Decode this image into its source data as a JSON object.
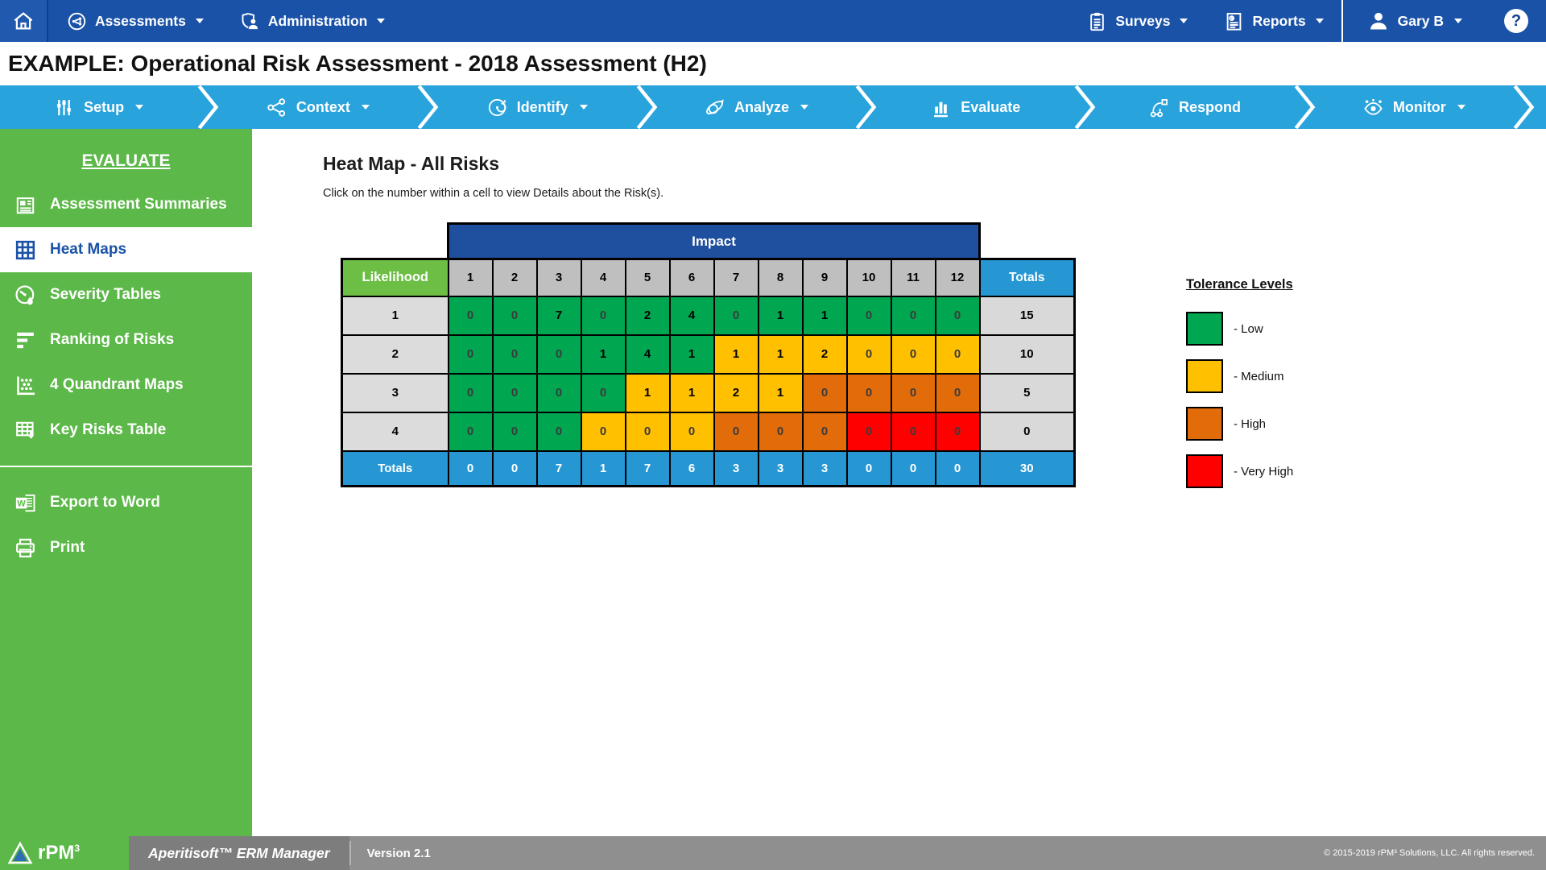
{
  "topnav": {
    "home": {
      "icon": "home-icon"
    },
    "menus_left": [
      {
        "label": "Assessments",
        "icon": "assessments-icon",
        "caret": true
      },
      {
        "label": "Administration",
        "icon": "administration-icon",
        "caret": true
      }
    ],
    "menus_right": [
      {
        "label": "Surveys",
        "icon": "surveys-icon",
        "caret": true
      },
      {
        "label": "Reports",
        "icon": "reports-icon",
        "caret": true
      }
    ],
    "user": {
      "label": "Gary B",
      "icon": "user-icon",
      "caret": true
    },
    "help_label": "?"
  },
  "title_bar": {
    "title": "EXAMPLE: Operational Risk Assessment - 2018 Assessment (H2)"
  },
  "workflow": {
    "items": [
      {
        "label": "Setup",
        "icon": "setup-icon",
        "caret": true,
        "active": false
      },
      {
        "label": "Context",
        "icon": "context-icon",
        "caret": true,
        "active": false
      },
      {
        "label": "Identify",
        "icon": "identify-icon",
        "caret": true,
        "active": false
      },
      {
        "label": "Analyze",
        "icon": "analyze-icon",
        "caret": true,
        "active": false
      },
      {
        "label": "Evaluate",
        "icon": "evaluate-icon",
        "caret": false,
        "active": true
      },
      {
        "label": "Respond",
        "icon": "respond-icon",
        "caret": false,
        "active": false
      },
      {
        "label": "Monitor",
        "icon": "monitor-icon",
        "caret": true,
        "active": false
      }
    ]
  },
  "sidebar": {
    "section_title": "EVALUATE",
    "items": [
      {
        "label": "Assessment Summaries",
        "icon": "assessment-summaries-icon",
        "active": false
      },
      {
        "label": "Heat Maps",
        "icon": "heat-maps-icon",
        "active": true
      },
      {
        "label": "Severity Tables",
        "icon": "severity-tables-icon",
        "active": false
      },
      {
        "label": "Ranking of Risks",
        "icon": "ranking-of-risks-icon",
        "active": false
      },
      {
        "label": "4 Quandrant Maps",
        "icon": "quadrant-maps-icon",
        "active": false
      },
      {
        "label": "Key Risks Table",
        "icon": "key-risks-table-icon",
        "active": false
      }
    ],
    "tools": [
      {
        "label": "Export to Word",
        "icon": "word-icon"
      },
      {
        "label": "Print",
        "icon": "print-icon"
      }
    ]
  },
  "main": {
    "heading": "Heat Map - All Risks",
    "instruction": "Click on the number within a cell to view Details about the Risk(s)."
  },
  "heatmap": {
    "impact_label": "Impact",
    "likelihood_label": "Likelihood",
    "totals_label": "Totals",
    "impact_levels": [
      "1",
      "2",
      "3",
      "4",
      "5",
      "6",
      "7",
      "8",
      "9",
      "10",
      "11",
      "12"
    ],
    "tolerance_colors": {
      "low": "#00A650",
      "medium": "#FFC000",
      "high": "#E36C0A",
      "very_high": "#FF0000"
    },
    "rows": [
      {
        "likelihood": "1",
        "values": [
          0,
          0,
          7,
          0,
          2,
          4,
          0,
          1,
          1,
          0,
          0,
          0
        ],
        "levels": [
          "low",
          "low",
          "low",
          "low",
          "low",
          "low",
          "low",
          "low",
          "low",
          "low",
          "low",
          "low"
        ],
        "total": 15
      },
      {
        "likelihood": "2",
        "values": [
          0,
          0,
          0,
          1,
          4,
          1,
          1,
          1,
          2,
          0,
          0,
          0
        ],
        "levels": [
          "low",
          "low",
          "low",
          "low",
          "low",
          "low",
          "medium",
          "medium",
          "medium",
          "medium",
          "medium",
          "medium"
        ],
        "total": 10
      },
      {
        "likelihood": "3",
        "values": [
          0,
          0,
          0,
          0,
          1,
          1,
          2,
          1,
          0,
          0,
          0,
          0
        ],
        "levels": [
          "low",
          "low",
          "low",
          "low",
          "medium",
          "medium",
          "medium",
          "medium",
          "high",
          "high",
          "high",
          "high"
        ],
        "total": 5
      },
      {
        "likelihood": "4",
        "values": [
          0,
          0,
          0,
          0,
          0,
          0,
          0,
          0,
          0,
          0,
          0,
          0
        ],
        "levels": [
          "low",
          "low",
          "low",
          "medium",
          "medium",
          "medium",
          "high",
          "high",
          "high",
          "very_high",
          "very_high",
          "very_high"
        ],
        "total": 0
      }
    ],
    "column_totals": [
      0,
      0,
      7,
      1,
      7,
      6,
      3,
      3,
      3,
      0,
      0,
      0
    ],
    "grand_total": 30
  },
  "legend": {
    "title": "Tolerance Levels",
    "items": [
      {
        "label": "- Low",
        "level": "low"
      },
      {
        "label": "- Medium",
        "level": "medium"
      },
      {
        "label": "- High",
        "level": "high"
      },
      {
        "label": "- Very High",
        "level": "very_high"
      }
    ]
  },
  "footer": {
    "logo_text": "rPM",
    "logo_sup": "3",
    "product": "Aperitisoft™ ERM Manager",
    "version": "Version 2.1",
    "copyright": "© 2015-2019 rPM³ Solutions, LLC. All rights reserved."
  }
}
